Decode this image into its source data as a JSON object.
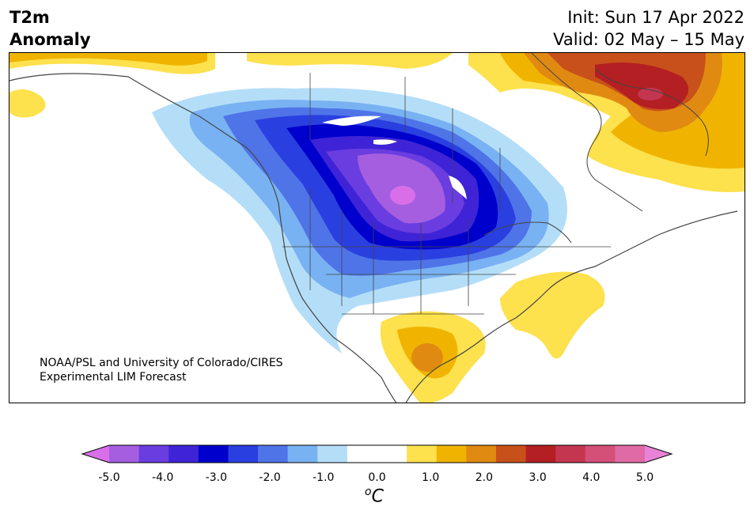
{
  "title": {
    "variable": "T2m",
    "subtitle": "Anomaly",
    "init": "Init: Sun 17 Apr 2022",
    "valid": "Valid: 02 May – 15 May"
  },
  "credit": {
    "line1": "NOAA/PSL and University of Colorado/CIRES",
    "line2": "Experimental LIM Forecast"
  },
  "colorbar": {
    "unit_sup": "o",
    "unit": "C",
    "ticks": [
      "-5.0",
      "-4.0",
      "-3.0",
      "-2.0",
      "-1.0",
      "0.0",
      "1.0",
      "2.0",
      "3.0",
      "4.0",
      "5.0"
    ],
    "colors": [
      "#d96fe8",
      "#a55ee0",
      "#6a3de0",
      "#3e24d6",
      "#0000cc",
      "#2a3fe0",
      "#4f74e8",
      "#79b2f2",
      "#b4def8",
      "#ffffff",
      "#ffffff",
      "#fde14d",
      "#f0b400",
      "#e08a12",
      "#c8501a",
      "#b31f22",
      "#c43650",
      "#d45079",
      "#e06aa6",
      "#e882d6"
    ]
  },
  "map_regions": {
    "west_canada": "cold anomaly",
    "northern_plains": "strong cold anomaly",
    "greenland": "warm anomaly",
    "southeast_us": "warm anomaly",
    "mexico": "warm anomaly",
    "alaska": "warm anomaly"
  }
}
